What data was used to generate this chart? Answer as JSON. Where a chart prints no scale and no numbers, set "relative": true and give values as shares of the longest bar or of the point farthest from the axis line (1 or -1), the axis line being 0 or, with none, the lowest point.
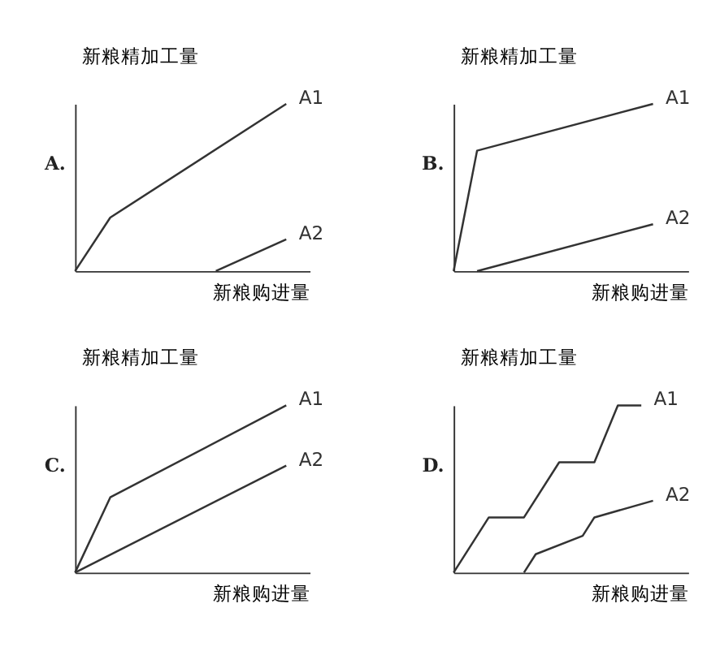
{
  "chart_data": [
    {
      "type": "line",
      "relative": true,
      "xlabel": "新粮购进量",
      "ylabel": "新粮精加工量",
      "annotations": [
        "A."
      ],
      "categories": [
        null,
        null,
        null,
        null,
        null,
        null,
        null,
        null,
        null,
        null,
        null,
        null,
        null,
        null,
        null,
        null,
        null,
        null,
        null,
        null,
        null
      ],
      "grid": false,
      "legend": false,
      "series": [
        {
          "name": "A1",
          "color": "#333333",
          "values": [
            0,
            null,
            null,
            0.32,
            null,
            null,
            null,
            null,
            null,
            null,
            null,
            null,
            null,
            null,
            null,
            null,
            null,
            null,
            1,
            null,
            null
          ]
        },
        {
          "name": "A2",
          "color": "#333333",
          "values": [
            null,
            null,
            null,
            null,
            null,
            null,
            null,
            null,
            null,
            null,
            null,
            null,
            0,
            null,
            null,
            null,
            null,
            null,
            0.19,
            null,
            null
          ]
        }
      ]
    },
    {
      "type": "line",
      "relative": true,
      "xlabel": "新粮购进量",
      "ylabel": "新粮精加工量",
      "annotations": [
        "B."
      ],
      "categories": [
        null,
        null,
        null,
        null,
        null,
        null,
        null,
        null,
        null,
        null,
        null,
        null,
        null,
        null,
        null,
        null,
        null,
        null,
        null,
        null,
        null
      ],
      "grid": false,
      "legend": false,
      "series": [
        {
          "name": "A1",
          "color": "#333333",
          "values": [
            0,
            null,
            0.72,
            null,
            null,
            null,
            null,
            null,
            null,
            null,
            null,
            null,
            null,
            null,
            null,
            null,
            null,
            1,
            null,
            null,
            null
          ]
        },
        {
          "name": "A2",
          "color": "#333333",
          "values": [
            null,
            null,
            0,
            null,
            null,
            null,
            null,
            null,
            null,
            null,
            null,
            null,
            null,
            null,
            null,
            null,
            null,
            0.28,
            null,
            null,
            null
          ]
        }
      ]
    },
    {
      "type": "line",
      "relative": true,
      "xlabel": "新粮购进量",
      "ylabel": "新粮精加工量",
      "annotations": [
        "C."
      ],
      "categories": [
        null,
        null,
        null,
        null,
        null,
        null,
        null,
        null,
        null,
        null,
        null,
        null,
        null,
        null,
        null,
        null,
        null,
        null,
        null,
        null,
        null
      ],
      "grid": false,
      "legend": false,
      "series": [
        {
          "name": "A1",
          "color": "#333333",
          "values": [
            0,
            null,
            null,
            0.45,
            null,
            null,
            null,
            null,
            null,
            null,
            null,
            null,
            null,
            null,
            null,
            null,
            null,
            null,
            1,
            null,
            null
          ]
        },
        {
          "name": "A2",
          "color": "#333333",
          "values": [
            0,
            null,
            null,
            null,
            null,
            null,
            null,
            null,
            null,
            null,
            null,
            null,
            null,
            null,
            null,
            null,
            null,
            null,
            0.64,
            null,
            null
          ]
        }
      ]
    },
    {
      "type": "line",
      "relative": true,
      "xlabel": "新粮购进量",
      "ylabel": "新粮精加工量",
      "annotations": [
        "D."
      ],
      "categories": [
        null,
        null,
        null,
        null,
        null,
        null,
        null,
        null,
        null,
        null,
        null,
        null,
        null,
        null,
        null,
        null,
        null,
        null,
        null,
        null,
        null
      ],
      "grid": false,
      "legend": false,
      "series": [
        {
          "name": "A1",
          "color": "#333333",
          "values": [
            0,
            null,
            null,
            0.33,
            null,
            null,
            0.33,
            null,
            null,
            0.66,
            null,
            null,
            0.66,
            null,
            1,
            null,
            1,
            null,
            null,
            null,
            null
          ]
        },
        {
          "name": "A2",
          "color": "#333333",
          "values": [
            null,
            null,
            null,
            null,
            null,
            null,
            0,
            0.11,
            null,
            null,
            null,
            0.22,
            0.33,
            null,
            null,
            null,
            null,
            0.43,
            null,
            null,
            null
          ]
        }
      ]
    }
  ]
}
